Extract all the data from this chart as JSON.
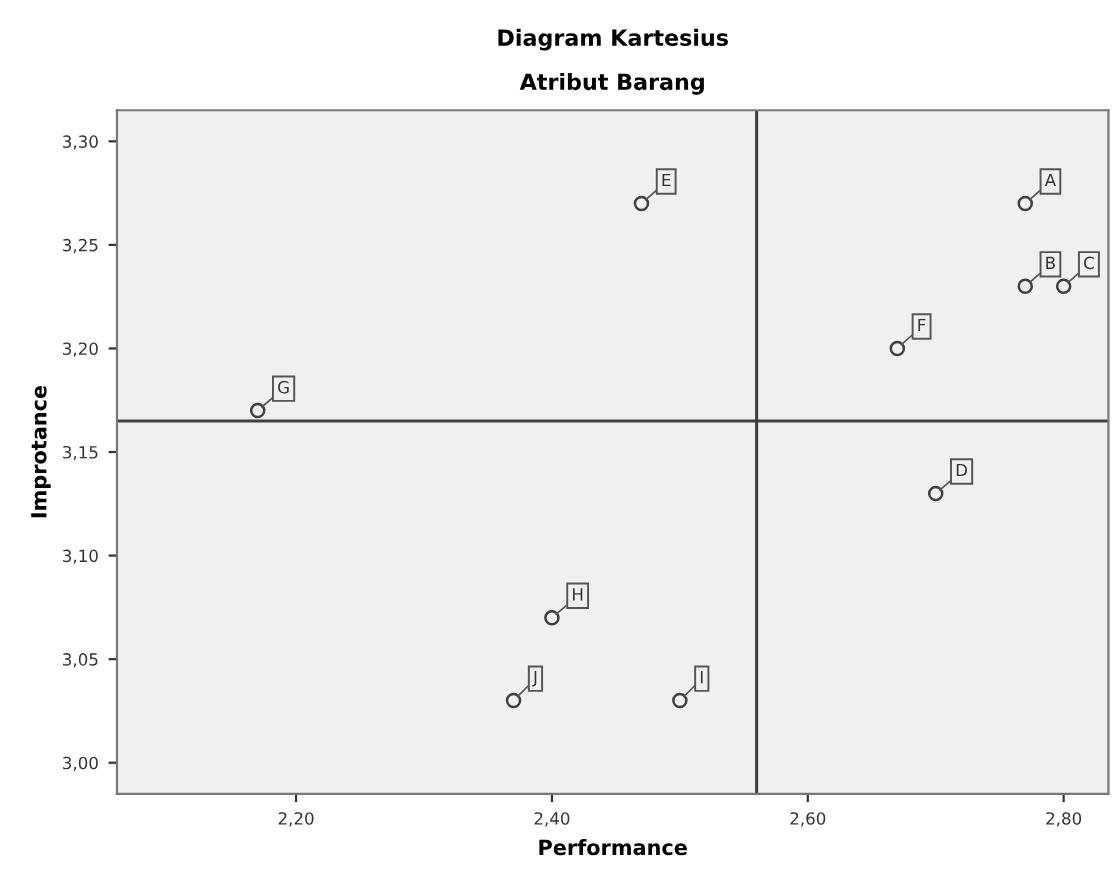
{
  "chart_data": {
    "type": "scatter",
    "title": "Diagram Kartesius",
    "subtitle": "Atribut Barang",
    "xlabel": "Performance",
    "ylabel": "Improtance",
    "x": [
      2.77,
      2.77,
      2.8,
      2.7,
      2.47,
      2.67,
      2.17,
      2.4,
      2.5,
      2.37
    ],
    "series": [
      {
        "color": "#404040",
        "values": [
          3.27,
          3.23,
          3.23,
          3.13,
          3.27,
          3.2,
          3.17,
          3.07,
          3.03,
          3.03
        ]
      }
    ],
    "marker": "circle",
    "grid": false,
    "annotations": [
      {
        "text": "A",
        "x": 2.77,
        "y": 3.27
      },
      {
        "text": "B",
        "x": 2.77,
        "y": 3.23
      },
      {
        "text": "C",
        "x": 2.8,
        "y": 3.23
      },
      {
        "text": "D",
        "x": 2.7,
        "y": 3.13
      },
      {
        "text": "E",
        "x": 2.47,
        "y": 3.27
      },
      {
        "text": "F",
        "x": 2.67,
        "y": 3.2
      },
      {
        "text": "G",
        "x": 2.17,
        "y": 3.17
      },
      {
        "text": "H",
        "x": 2.4,
        "y": 3.07
      },
      {
        "text": "I",
        "x": 2.5,
        "y": 3.03
      },
      {
        "text": "J",
        "x": 2.37,
        "y": 3.03
      }
    ],
    "ref_lines": [
      {
        "axis": "x",
        "value": 2.56,
        "color": "#404040"
      },
      {
        "axis": "y",
        "value": 3.165,
        "color": "#404040"
      }
    ],
    "xlim": [
      2.06,
      2.835
    ],
    "ylim": [
      2.985,
      3.315
    ],
    "xticks": [
      {
        "value": 2.2,
        "label": "2,20"
      },
      {
        "value": 2.4,
        "label": "2,40"
      },
      {
        "value": 2.6,
        "label": "2,60"
      },
      {
        "value": 2.8,
        "label": "2,80"
      }
    ],
    "yticks": [
      {
        "value": 3.0,
        "label": "3,00"
      },
      {
        "value": 3.05,
        "label": "3,05"
      },
      {
        "value": 3.1,
        "label": "3,10"
      },
      {
        "value": 3.15,
        "label": "3,15"
      },
      {
        "value": 3.2,
        "label": "3,20"
      },
      {
        "value": 3.25,
        "label": "3,25"
      },
      {
        "value": 3.3,
        "label": "3,30"
      }
    ]
  }
}
